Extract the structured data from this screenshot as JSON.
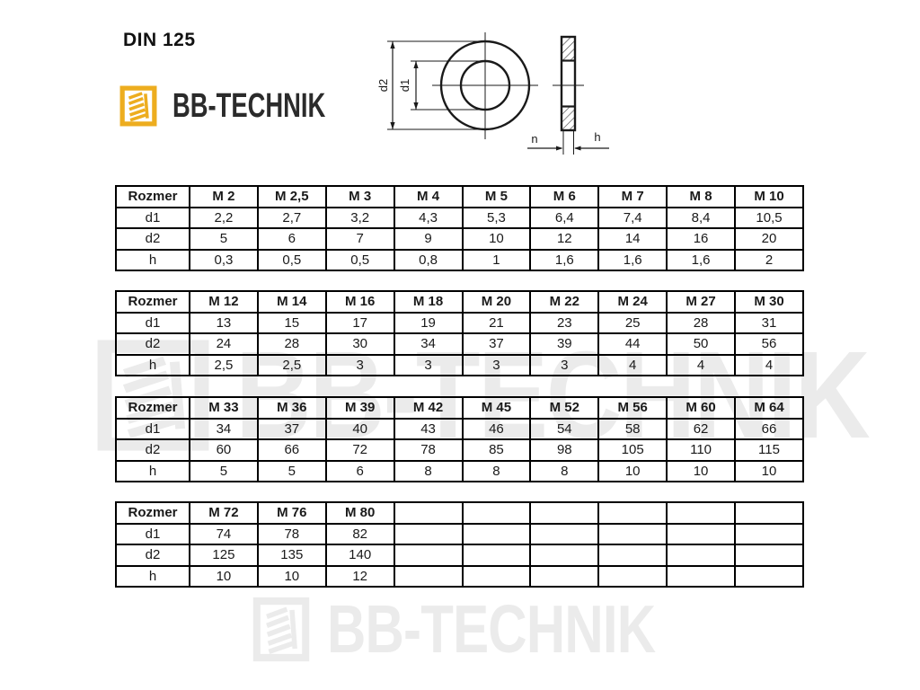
{
  "page": {
    "title": "DIN 125"
  },
  "brand": {
    "name": "BB-TECHNIK"
  },
  "colors": {
    "logo_gold": "#EDAD1F",
    "text_dark": "#2b2b2b",
    "watermark_gray": "#EBEBEB",
    "line_color": "#1a1a1a"
  },
  "drawing": {
    "label_d1": "d1",
    "label_d2": "d2",
    "label_n": "n",
    "label_h": "h"
  },
  "tables": [
    {
      "columns": [
        "Rozmer",
        "M 2",
        "M 2,5",
        "M 3",
        "M 4",
        "M 5",
        "M 6",
        "M 7",
        "M 8",
        "M 10"
      ],
      "rows": [
        [
          "d1",
          "2,2",
          "2,7",
          "3,2",
          "4,3",
          "5,3",
          "6,4",
          "7,4",
          "8,4",
          "10,5"
        ],
        [
          "d2",
          "5",
          "6",
          "7",
          "9",
          "10",
          "12",
          "14",
          "16",
          "20"
        ],
        [
          "h",
          "0,3",
          "0,5",
          "0,5",
          "0,8",
          "1",
          "1,6",
          "1,6",
          "1,6",
          "2"
        ]
      ]
    },
    {
      "columns": [
        "Rozmer",
        "M 12",
        "M 14",
        "M 16",
        "M 18",
        "M 20",
        "M 22",
        "M 24",
        "M 27",
        "M 30"
      ],
      "rows": [
        [
          "d1",
          "13",
          "15",
          "17",
          "19",
          "21",
          "23",
          "25",
          "28",
          "31"
        ],
        [
          "d2",
          "24",
          "28",
          "30",
          "34",
          "37",
          "39",
          "44",
          "50",
          "56"
        ],
        [
          "h",
          "2,5",
          "2,5",
          "3",
          "3",
          "3",
          "3",
          "4",
          "4",
          "4"
        ]
      ]
    },
    {
      "columns": [
        "Rozmer",
        "M 33",
        "M 36",
        "M 39",
        "M 42",
        "M 45",
        "M 52",
        "M 56",
        "M 60",
        "M 64"
      ],
      "rows": [
        [
          "d1",
          "34",
          "37",
          "40",
          "43",
          "46",
          "54",
          "58",
          "62",
          "66"
        ],
        [
          "d2",
          "60",
          "66",
          "72",
          "78",
          "85",
          "98",
          "105",
          "110",
          "115"
        ],
        [
          "h",
          "5",
          "5",
          "6",
          "8",
          "8",
          "8",
          "10",
          "10",
          "10"
        ]
      ]
    },
    {
      "columns": [
        "Rozmer",
        "M 72",
        "M 76",
        "M 80",
        "",
        "",
        "",
        "",
        "",
        ""
      ],
      "rows": [
        [
          "d1",
          "74",
          "78",
          "82",
          "",
          "",
          "",
          "",
          "",
          ""
        ],
        [
          "d2",
          "125",
          "135",
          "140",
          "",
          "",
          "",
          "",
          "",
          ""
        ],
        [
          "h",
          "10",
          "10",
          "12",
          "",
          "",
          "",
          "",
          "",
          ""
        ]
      ]
    }
  ],
  "watermark": {
    "text": "BB-TECHNIK"
  }
}
